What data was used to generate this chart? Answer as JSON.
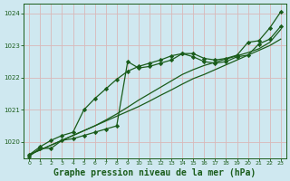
{
  "background_color": "#cfe8f0",
  "grid_color": "#d9b8b8",
  "line_color": "#1a5c1a",
  "title": "Graphe pression niveau de la mer (hPa)",
  "ylim": [
    1019.5,
    1024.3
  ],
  "xlim": [
    -0.5,
    23.5
  ],
  "yticks": [
    1020,
    1021,
    1022,
    1023,
    1024
  ],
  "xticks": [
    0,
    1,
    2,
    3,
    4,
    5,
    6,
    7,
    8,
    9,
    10,
    11,
    12,
    13,
    14,
    15,
    16,
    17,
    18,
    19,
    20,
    21,
    22,
    23
  ],
  "series": [
    {
      "x": [
        0,
        1,
        2,
        3,
        4,
        5,
        6,
        7,
        8,
        9,
        10,
        11,
        12,
        13,
        14,
        15,
        16,
        17,
        18,
        19,
        20,
        21,
        22,
        23
      ],
      "y": [
        1019.55,
        1019.8,
        1019.8,
        1020.05,
        1020.1,
        1020.2,
        1020.3,
        1020.4,
        1020.5,
        1022.5,
        1022.3,
        1022.35,
        1022.45,
        1022.55,
        1022.75,
        1022.75,
        1022.6,
        1022.55,
        1022.6,
        1022.7,
        1023.1,
        1023.15,
        1023.55,
        1024.05
      ],
      "marker": "D",
      "markersize": 2.2,
      "linewidth": 0.9
    },
    {
      "x": [
        0,
        1,
        2,
        3,
        4,
        5,
        6,
        7,
        8,
        9,
        10,
        11,
        12,
        13,
        14,
        15,
        16,
        17,
        18,
        19,
        20,
        21,
        22,
        23
      ],
      "y": [
        1019.6,
        1019.75,
        1019.9,
        1020.05,
        1020.2,
        1020.35,
        1020.5,
        1020.65,
        1020.8,
        1020.95,
        1021.1,
        1021.27,
        1021.45,
        1021.62,
        1021.8,
        1021.97,
        1022.1,
        1022.25,
        1022.4,
        1022.55,
        1022.7,
        1022.85,
        1023.0,
        1023.2
      ],
      "marker": null,
      "linewidth": 0.9
    },
    {
      "x": [
        0,
        1,
        2,
        3,
        4,
        5,
        6,
        7,
        8,
        9,
        10,
        11,
        12,
        13,
        14,
        15,
        16,
        17,
        18,
        19,
        20,
        21,
        22,
        23
      ],
      "y": [
        1019.6,
        1019.75,
        1019.9,
        1020.05,
        1020.2,
        1020.35,
        1020.5,
        1020.68,
        1020.87,
        1021.08,
        1021.3,
        1021.5,
        1021.7,
        1021.9,
        1022.1,
        1022.25,
        1022.38,
        1022.48,
        1022.58,
        1022.68,
        1022.78,
        1022.9,
        1023.1,
        1023.5
      ],
      "marker": null,
      "linewidth": 0.9
    },
    {
      "x": [
        0,
        1,
        2,
        3,
        4,
        5,
        6,
        7,
        8,
        9,
        10,
        11,
        12,
        13,
        14,
        15,
        16,
        17,
        18,
        19,
        20,
        21,
        22,
        23
      ],
      "y": [
        1019.6,
        1019.85,
        1020.05,
        1020.2,
        1020.3,
        1021.0,
        1021.35,
        1021.65,
        1021.95,
        1022.2,
        1022.35,
        1022.45,
        1022.55,
        1022.68,
        1022.75,
        1022.65,
        1022.5,
        1022.45,
        1022.5,
        1022.65,
        1022.7,
        1023.05,
        1023.2,
        1023.6
      ],
      "marker": "D",
      "markersize": 2.2,
      "linewidth": 0.9
    }
  ]
}
